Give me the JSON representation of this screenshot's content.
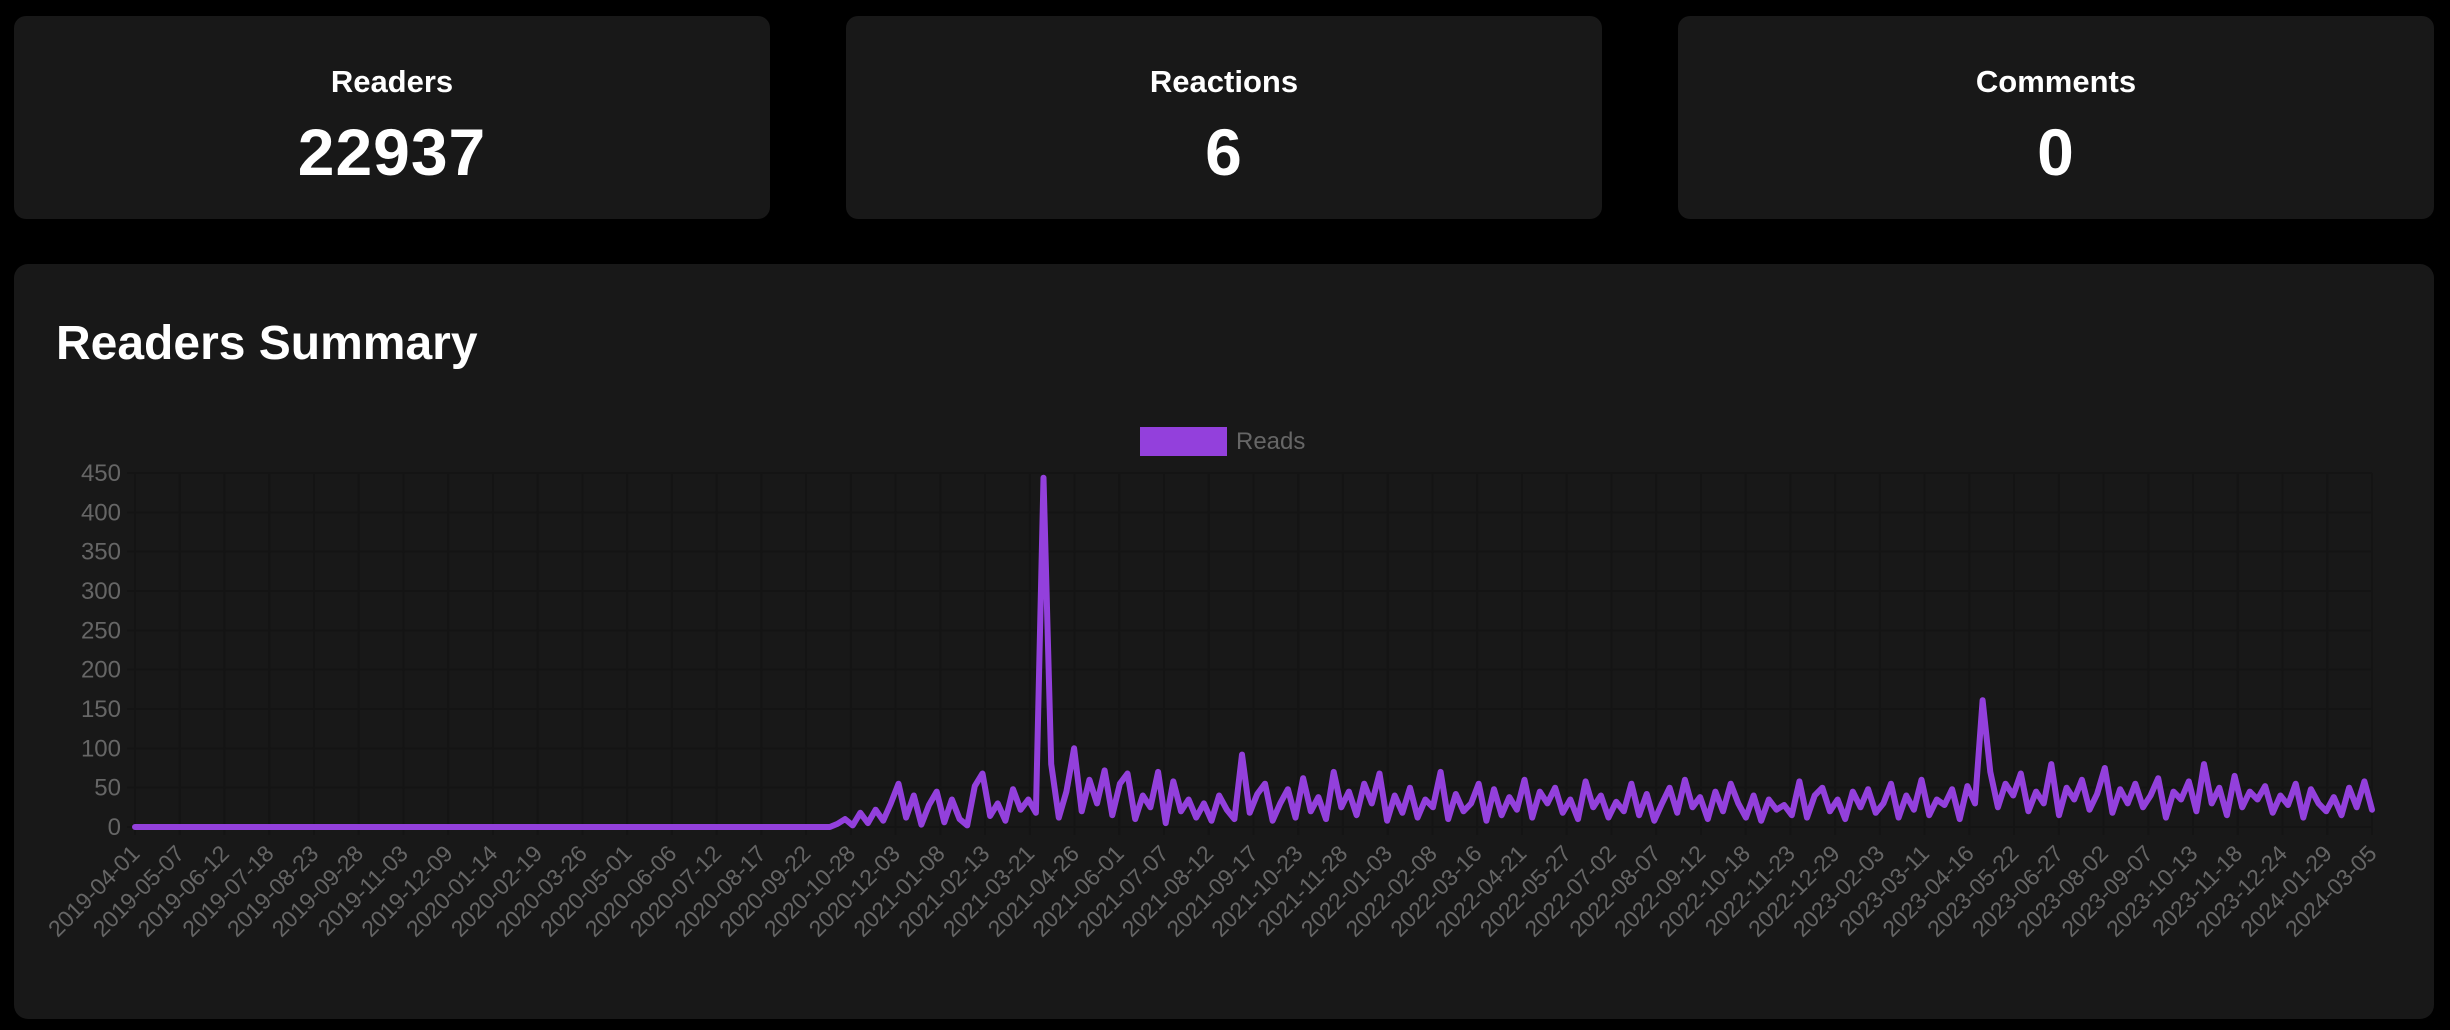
{
  "stats": [
    {
      "label": "Readers",
      "value": "22937"
    },
    {
      "label": "Reactions",
      "value": "6"
    },
    {
      "label": "Comments",
      "value": "0"
    }
  ],
  "summary": {
    "title": "Readers Summary"
  },
  "colors": {
    "series": "#9340dc",
    "card_bg": "#181818",
    "page_bg": "#000000",
    "grid": "#141414",
    "tick": "#666666"
  },
  "chart_data": {
    "type": "line",
    "title": "Readers Summary",
    "xlabel": "",
    "ylabel": "",
    "ylim": [
      0,
      450
    ],
    "yticks": [
      0,
      50,
      100,
      150,
      200,
      250,
      300,
      350,
      400,
      450
    ],
    "grid": true,
    "legend_position": "top",
    "x_tick_labels": [
      "2019-04-01",
      "2019-05-07",
      "2019-06-12",
      "2019-07-18",
      "2019-08-23",
      "2019-09-28",
      "2019-11-03",
      "2019-12-09",
      "2020-01-14",
      "2020-02-19",
      "2020-03-26",
      "2020-05-01",
      "2020-06-06",
      "2020-07-12",
      "2020-08-17",
      "2020-09-22",
      "2020-10-28",
      "2020-12-03",
      "2021-01-08",
      "2021-02-13",
      "2021-03-21",
      "2021-04-26",
      "2021-06-01",
      "2021-07-07",
      "2021-08-12",
      "2021-09-17",
      "2021-10-23",
      "2021-11-28",
      "2022-01-03",
      "2022-02-08",
      "2022-03-16",
      "2022-04-21",
      "2022-05-27",
      "2022-07-02",
      "2022-08-07",
      "2022-09-12",
      "2022-10-18",
      "2022-11-23",
      "2022-12-29",
      "2023-02-03",
      "2023-03-11",
      "2023-04-16",
      "2023-05-22",
      "2023-06-27",
      "2023-08-02",
      "2023-09-07",
      "2023-10-13",
      "2023-11-18",
      "2023-12-24",
      "2024-01-29",
      "2024-03-05"
    ],
    "x_start": "2019-04-01",
    "x_end": "2024-03-05",
    "sample_step_days": 6,
    "series": [
      {
        "name": "Reads",
        "values": [
          0,
          0,
          0,
          0,
          0,
          0,
          0,
          0,
          0,
          0,
          0,
          0,
          0,
          0,
          0,
          0,
          0,
          0,
          0,
          0,
          0,
          0,
          0,
          0,
          0,
          0,
          0,
          0,
          0,
          0,
          0,
          0,
          0,
          0,
          0,
          0,
          0,
          0,
          0,
          0,
          0,
          0,
          0,
          0,
          0,
          0,
          0,
          0,
          0,
          0,
          0,
          0,
          0,
          0,
          0,
          0,
          0,
          0,
          0,
          0,
          0,
          0,
          0,
          0,
          0,
          0,
          0,
          0,
          0,
          0,
          0,
          0,
          0,
          0,
          0,
          0,
          0,
          0,
          0,
          0,
          0,
          0,
          0,
          0,
          0,
          0,
          0,
          0,
          0,
          0,
          0,
          0,
          4,
          10,
          2,
          18,
          5,
          22,
          8,
          30,
          55,
          12,
          40,
          3,
          28,
          45,
          6,
          35,
          10,
          2,
          52,
          68,
          14,
          30,
          8,
          48,
          22,
          35,
          18,
          444,
          80,
          12,
          45,
          100,
          20,
          60,
          30,
          72,
          15,
          55,
          68,
          10,
          40,
          25,
          70,
          5,
          58,
          20,
          35,
          12,
          30,
          8,
          40,
          22,
          10,
          92,
          18,
          42,
          55,
          8,
          30,
          48,
          12,
          62,
          20,
          38,
          10,
          70,
          25,
          45,
          15,
          55,
          30,
          68,
          8,
          40,
          18,
          50,
          12,
          35,
          25,
          70,
          10,
          42,
          20,
          30,
          55,
          8,
          48,
          15,
          38,
          22,
          60,
          12,
          45,
          30,
          50,
          18,
          35,
          10,
          58,
          25,
          40,
          12,
          32,
          20,
          55,
          15,
          42,
          8,
          30,
          50,
          18,
          60,
          25,
          38,
          10,
          45,
          20,
          55,
          30,
          12,
          40,
          8,
          35,
          22,
          28,
          15,
          58,
          12,
          40,
          50,
          20,
          35,
          10,
          45,
          25,
          48,
          18,
          30,
          55,
          12,
          40,
          22,
          60,
          15,
          35,
          28,
          48,
          10,
          52,
          30,
          161,
          70,
          25,
          55,
          40,
          68,
          20,
          45,
          30,
          80,
          15,
          50,
          35,
          60,
          22,
          42,
          75,
          18,
          48,
          30,
          55,
          25,
          40,
          62,
          12,
          45,
          35,
          58,
          20,
          80,
          30,
          50,
          15,
          65,
          25,
          45,
          35,
          52,
          18,
          40,
          28,
          55,
          12,
          48,
          30,
          20,
          38,
          15,
          50,
          25,
          58,
          22
        ]
      }
    ],
    "annotations": {
      "max_peak": {
        "approx_date": "2021-02-25",
        "value": 444
      },
      "second_peak": {
        "approx_date": "2023-04-06",
        "value": 161
      }
    }
  }
}
